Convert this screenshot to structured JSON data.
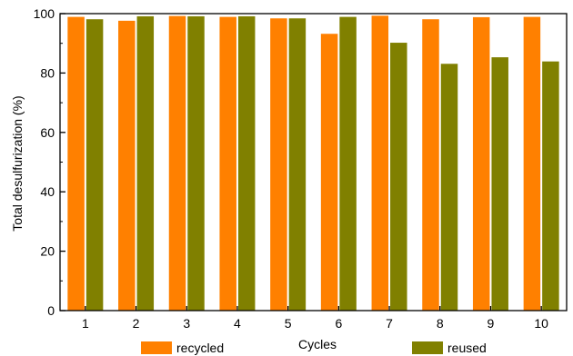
{
  "chart_data": {
    "type": "bar",
    "xlabel": "Cycles",
    "ylabel": "Total desulfurization (%)",
    "ylim": [
      0,
      100
    ],
    "yticks": [
      0,
      20,
      40,
      60,
      80,
      100
    ],
    "categories": [
      "1",
      "2",
      "3",
      "4",
      "5",
      "6",
      "7",
      "8",
      "9",
      "10"
    ],
    "series": [
      {
        "name": "recycled",
        "color": "#ff8000",
        "values": [
          98.9,
          97.6,
          99.2,
          98.9,
          98.4,
          93.2,
          99.3,
          98.1,
          98.8,
          98.9
        ]
      },
      {
        "name": "reused",
        "color": "#808000",
        "values": [
          98.1,
          99.1,
          99.1,
          99.1,
          98.4,
          98.9,
          90.2,
          83.1,
          85.3,
          83.9
        ]
      }
    ],
    "grid": false,
    "legend": "bottom"
  }
}
